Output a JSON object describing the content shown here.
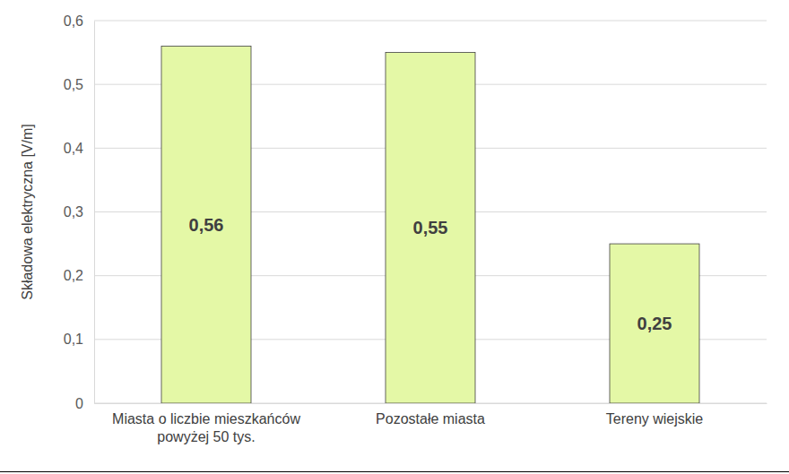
{
  "chart_data": {
    "type": "bar",
    "y_label": "Składowa elektryczna [V/m]",
    "categories": [
      "Miasta o liczbie mieszkańców powyżej 50 tys.",
      "Pozostałe miasta",
      "Tereny wiejskie"
    ],
    "values": [
      0.56,
      0.55,
      0.25
    ],
    "value_labels": [
      "0,56",
      "0,55",
      "0,25"
    ],
    "color": "#e4f8a6",
    "ylim": [
      0,
      0.6
    ],
    "yticks": [
      0,
      {
        "value": 0.1,
        "label": "0,1"
      },
      {
        "value": 0.2,
        "label": "0,2"
      },
      {
        "value": 0.3,
        "label": "0,3"
      },
      {
        "value": 0.4,
        "label": "0,4"
      },
      {
        "value": 0.5,
        "label": "0,5"
      },
      {
        "value": 0.6,
        "label": "0,6"
      }
    ],
    "grid": true,
    "data_labels": true
  }
}
